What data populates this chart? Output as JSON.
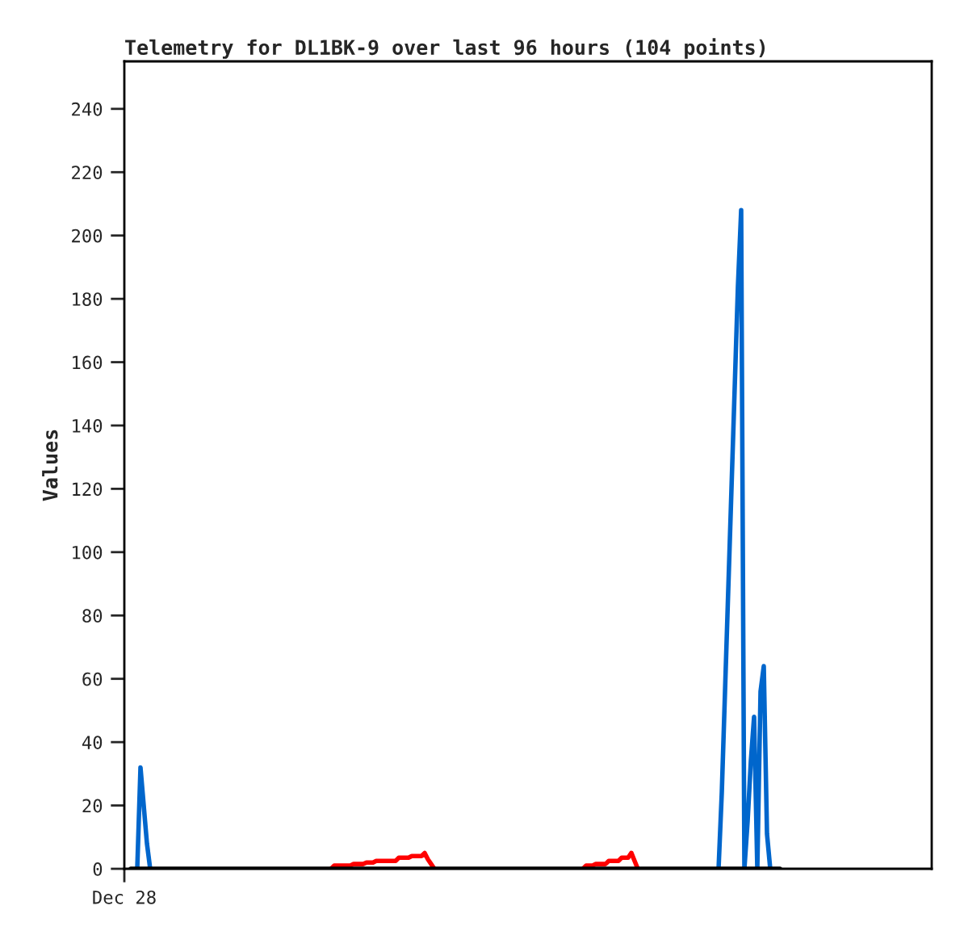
{
  "chart_data": {
    "type": "line",
    "title": "Telemetry for DL1BK-9 over last 96 hours (104 points)",
    "ylabel": "Values",
    "categories": [
      "Dec 28",
      null,
      null,
      null,
      null,
      null,
      null,
      null,
      null,
      null,
      null,
      null,
      null,
      null,
      null,
      null,
      null,
      null,
      null,
      null,
      null,
      null,
      null,
      null,
      null,
      null,
      null,
      null,
      null,
      null,
      null,
      null,
      null,
      null,
      null,
      null,
      null,
      null,
      null,
      null,
      null,
      null,
      null,
      null,
      null,
      null,
      null,
      null,
      null,
      null,
      null,
      null,
      null,
      null,
      null,
      null,
      null,
      null,
      null,
      null,
      null,
      null,
      null,
      null,
      null,
      null,
      null,
      null,
      null,
      null,
      null,
      null,
      null,
      null,
      null,
      null,
      null,
      null,
      null,
      null,
      null,
      null,
      null,
      null,
      null,
      null,
      null,
      null,
      null,
      null,
      null,
      null,
      null,
      null,
      null,
      null,
      null,
      null,
      null,
      null,
      null,
      null,
      null,
      null,
      null,
      null,
      null,
      null,
      null,
      null,
      null,
      null,
      null,
      null,
      null,
      null,
      null,
      null,
      null,
      null,
      null,
      null,
      null,
      null,
      null,
      null,
      null,
      null,
      null,
      null,
      null,
      null,
      null,
      null,
      null,
      null,
      null,
      null,
      null,
      null,
      null,
      null,
      null,
      null,
      null,
      null,
      null,
      null,
      null,
      null,
      null,
      null,
      null,
      null,
      null,
      null,
      null,
      null,
      null,
      null,
      null,
      null,
      null,
      null,
      null,
      null,
      null,
      null,
      null,
      null,
      null,
      null,
      null,
      null,
      null,
      null,
      null,
      null,
      null,
      null,
      null,
      null,
      null,
      null,
      null,
      null,
      null,
      null,
      null,
      null,
      null,
      null,
      null,
      null,
      null,
      null,
      null,
      null,
      null,
      null,
      null,
      null,
      null,
      null,
      null,
      null,
      null,
      null,
      null,
      null,
      null,
      null,
      null,
      null,
      null,
      null,
      null,
      null,
      null,
      null,
      null,
      null,
      null,
      null,
      null,
      null,
      null,
      null,
      null,
      null,
      null,
      null,
      null,
      null,
      null,
      null,
      null,
      null,
      null,
      null,
      null,
      null,
      null,
      null,
      null,
      null,
      null,
      null,
      null,
      null
    ],
    "ylim": [
      0,
      255
    ],
    "yticks": [
      0,
      20,
      40,
      60,
      80,
      100,
      120,
      140,
      160,
      180,
      200,
      220,
      240
    ],
    "series": [
      {
        "color": "#0066cc",
        "values": [
          null,
          null,
          null,
          null,
          0,
          32,
          20,
          8,
          0,
          null,
          null,
          null,
          null,
          null,
          null,
          null,
          null,
          null,
          null,
          null,
          null,
          null,
          null,
          null,
          null,
          null,
          null,
          null,
          null,
          null,
          null,
          null,
          null,
          null,
          null,
          null,
          null,
          null,
          null,
          null,
          null,
          null,
          null,
          null,
          null,
          null,
          null,
          null,
          null,
          null,
          null,
          null,
          null,
          null,
          null,
          null,
          null,
          null,
          null,
          null,
          null,
          null,
          null,
          null,
          null,
          null,
          null,
          null,
          null,
          null,
          null,
          null,
          null,
          null,
          null,
          null,
          null,
          null,
          null,
          null,
          null,
          null,
          null,
          null,
          null,
          null,
          null,
          null,
          null,
          null,
          null,
          null,
          null,
          null,
          null,
          null,
          null,
          null,
          null,
          null,
          null,
          null,
          null,
          null,
          null,
          null,
          null,
          null,
          null,
          null,
          null,
          null,
          null,
          null,
          null,
          null,
          null,
          null,
          null,
          null,
          null,
          null,
          null,
          null,
          null,
          null,
          null,
          null,
          null,
          null,
          null,
          null,
          null,
          null,
          null,
          null,
          null,
          null,
          null,
          null,
          null,
          null,
          null,
          null,
          null,
          null,
          null,
          null,
          null,
          null,
          null,
          null,
          null,
          null,
          null,
          null,
          null,
          null,
          null,
          null,
          null,
          null,
          null,
          null,
          null,
          null,
          null,
          null,
          null,
          null,
          null,
          null,
          null,
          null,
          null,
          null,
          null,
          null,
          null,
          null,
          null,
          null,
          null,
          null,
          0,
          24,
          56,
          88,
          120,
          152,
          184,
          208,
          0,
          15,
          34,
          48,
          0,
          56,
          64,
          11,
          0,
          null,
          null,
          null,
          null,
          null,
          null,
          null,
          null,
          null,
          null,
          null,
          null,
          null,
          null,
          null,
          null,
          null,
          null,
          null,
          null,
          null,
          null,
          null,
          null,
          null,
          null,
          null,
          null,
          null,
          null,
          null,
          null,
          null,
          null,
          null,
          null,
          null,
          null,
          null,
          null,
          null,
          null,
          null,
          null,
          null,
          null,
          null,
          null,
          null
        ]
      },
      {
        "color": "#ff0000",
        "values": [
          null,
          null,
          null,
          null,
          null,
          null,
          null,
          null,
          null,
          null,
          null,
          null,
          null,
          null,
          null,
          null,
          null,
          null,
          null,
          null,
          null,
          null,
          null,
          null,
          null,
          null,
          null,
          null,
          null,
          null,
          null,
          null,
          null,
          null,
          null,
          null,
          null,
          null,
          null,
          null,
          null,
          null,
          null,
          null,
          null,
          null,
          null,
          null,
          null,
          null,
          null,
          null,
          null,
          null,
          null,
          null,
          null,
          null,
          null,
          null,
          null,
          null,
          null,
          null,
          0,
          1,
          1,
          1,
          1,
          1,
          1,
          1.5,
          1.5,
          1.5,
          1.5,
          2,
          2,
          2,
          2.5,
          2.5,
          2.5,
          2.5,
          2.5,
          2.5,
          2.5,
          3.5,
          3.5,
          3.5,
          3.5,
          4,
          4,
          4,
          4,
          5,
          3,
          1.5,
          0,
          null,
          null,
          null,
          null,
          null,
          null,
          null,
          null,
          null,
          null,
          null,
          null,
          null,
          null,
          null,
          null,
          null,
          null,
          null,
          null,
          null,
          null,
          null,
          null,
          null,
          null,
          null,
          null,
          null,
          null,
          null,
          null,
          null,
          null,
          null,
          null,
          null,
          null,
          null,
          null,
          null,
          null,
          null,
          null,
          null,
          0,
          1,
          1,
          1,
          1.5,
          1.5,
          1.5,
          1.5,
          2.5,
          2.5,
          2.5,
          2.5,
          3.5,
          3.5,
          3.5,
          5,
          2.5,
          0,
          null,
          null,
          null,
          null,
          null,
          null,
          null,
          null,
          null,
          null,
          null,
          null,
          null,
          null,
          null,
          null,
          null,
          null,
          null,
          null,
          null,
          null,
          null,
          null,
          null,
          null,
          null,
          null,
          null,
          null,
          null,
          null,
          null,
          null,
          null,
          null,
          null,
          null,
          null,
          null,
          null,
          null,
          null,
          null,
          null,
          null,
          null,
          null,
          null,
          null,
          null,
          null,
          null,
          null,
          null,
          null,
          null,
          null,
          null,
          null,
          null,
          null,
          null,
          null,
          null,
          null,
          null,
          null,
          null,
          null,
          null,
          null,
          null,
          null,
          null,
          null,
          null,
          null,
          null,
          null,
          null,
          null,
          null,
          null,
          null,
          null,
          null,
          null,
          null,
          null
        ]
      },
      {
        "color": "#000000",
        "values": [
          null,
          null,
          0,
          0,
          0,
          0,
          0,
          0,
          0,
          0,
          0,
          0,
          0,
          0,
          0,
          0,
          0,
          0,
          0,
          0,
          0,
          0,
          0,
          0,
          0,
          0,
          0,
          0,
          0,
          0,
          0,
          0,
          0,
          0,
          0,
          0,
          0,
          0,
          0,
          0,
          0,
          0,
          0,
          0,
          0,
          0,
          0,
          0,
          0,
          0,
          0,
          0,
          0,
          0,
          0,
          0,
          0,
          0,
          0,
          0,
          0,
          0,
          0,
          0,
          0,
          0,
          0,
          0,
          0,
          0,
          0,
          0,
          0,
          0,
          0,
          0,
          0,
          0,
          0,
          0,
          0,
          0,
          0,
          0,
          0,
          0,
          0,
          0,
          0,
          0,
          0,
          0,
          0,
          0,
          0,
          0,
          0,
          0,
          0,
          0,
          0,
          0,
          0,
          0,
          0,
          0,
          0,
          0,
          0,
          0,
          0,
          0,
          0,
          0,
          0,
          0,
          0,
          0,
          0,
          0,
          0,
          0,
          0,
          0,
          0,
          0,
          0,
          0,
          0,
          0,
          0,
          0,
          0,
          0,
          0,
          0,
          0,
          0,
          0,
          0,
          0,
          0,
          0,
          0,
          0,
          0,
          0,
          0,
          0,
          0,
          0,
          0,
          0,
          0,
          0,
          0,
          0,
          0,
          0,
          0,
          0,
          0,
          0,
          0,
          0,
          0,
          0,
          0,
          0,
          0,
          0,
          0,
          0,
          0,
          0,
          0,
          0,
          0,
          0,
          0,
          0,
          0,
          0,
          0,
          0,
          0,
          0,
          0,
          0,
          0,
          0,
          0,
          0,
          0,
          0,
          0,
          0,
          0,
          0,
          0,
          0,
          0,
          0,
          0,
          null,
          null,
          null,
          null,
          null,
          null,
          null,
          null,
          null,
          null,
          null,
          null,
          null,
          null,
          null,
          null,
          null,
          null,
          null,
          null,
          null,
          null,
          null,
          null,
          null,
          null,
          null,
          null,
          null,
          null,
          null,
          null,
          null,
          null,
          null,
          null,
          null,
          null,
          null,
          null,
          null,
          null,
          null,
          null,
          null,
          null
        ]
      }
    ]
  }
}
